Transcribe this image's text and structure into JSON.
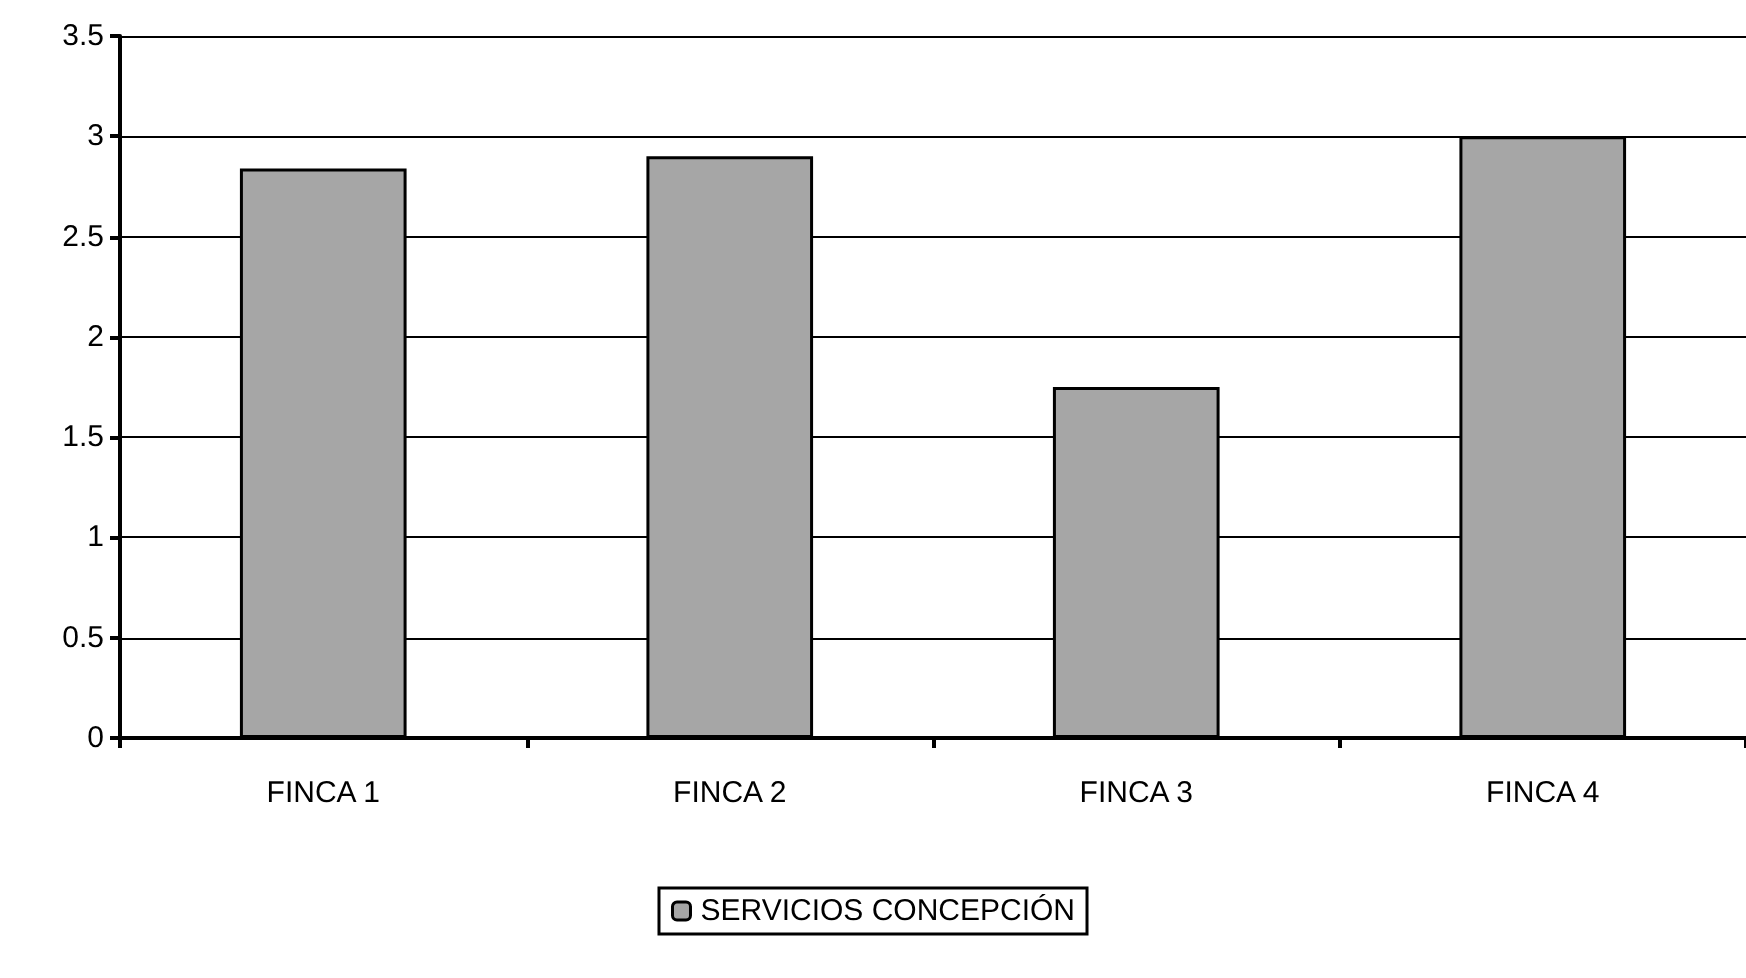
{
  "chart_data": {
    "type": "bar",
    "categories": [
      "FINCA 1",
      "FINCA 2",
      "FINCA 3",
      "FINCA 4"
    ],
    "series": [
      {
        "name": "SERVICIOS CONCEPCIÓN",
        "color": "#a6a6a6",
        "values": [
          2.84,
          2.9,
          1.75,
          3.0
        ]
      }
    ],
    "ylim": [
      0,
      3.5
    ],
    "yticks": [
      0,
      0.5,
      1,
      1.5,
      2,
      2.5,
      3,
      3.5
    ],
    "grid": "y",
    "legend": "bottom"
  }
}
